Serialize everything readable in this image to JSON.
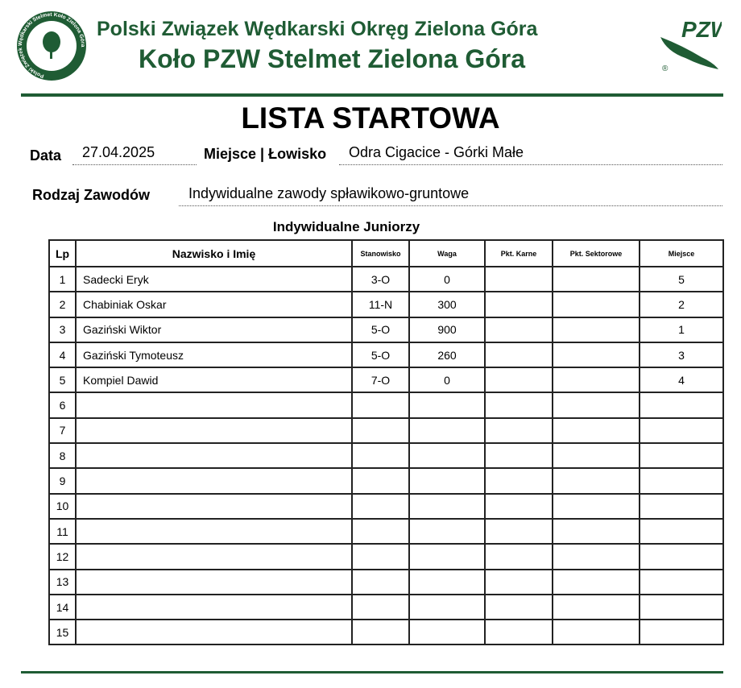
{
  "header": {
    "org": "Polski Związek Wędkarski Okręg Zielona Góra",
    "club": "Koło PZW Stelmet Zielona Góra",
    "left_logo_text": "Polski Związek Wędkarski Stelmet Koło Zielona Góra",
    "right_logo_text": "PZW ®"
  },
  "title": "LISTA STARTOWA",
  "fields": {
    "date_label": "Data",
    "date": "27.04.2025",
    "place_label": "Miejsce | Łowisko",
    "place": "Odra Cigacice - Górki Małe",
    "type_label": "Rodzaj Zawodów",
    "type": "Indywidualne zawody spławikowo-gruntowe"
  },
  "category": "Indywidualne Juniorzy",
  "colors": {
    "brand": "#1f5c34"
  },
  "table": {
    "headers": [
      "Lp",
      "Nazwisko i Imię",
      "Stanowisko",
      "Waga",
      "Pkt. Karne",
      "Pkt. Sektorowe",
      "Miejsce"
    ],
    "rows": [
      [
        "1",
        "Sadecki Eryk",
        "3-O",
        "0",
        "",
        "",
        "5"
      ],
      [
        "2",
        "Chabiniak Oskar",
        "11-N",
        "300",
        "",
        "",
        "2"
      ],
      [
        "3",
        "Gaziński Wiktor",
        "5-O",
        "900",
        "",
        "",
        "1"
      ],
      [
        "4",
        "Gaziński Tymoteusz",
        "5-O",
        "260",
        "",
        "",
        "3"
      ],
      [
        "5",
        "Kompiel Dawid",
        "7-O",
        "0",
        "",
        "",
        "4"
      ],
      [
        "6",
        "",
        "",
        "",
        "",
        "",
        ""
      ],
      [
        "7",
        "",
        "",
        "",
        "",
        "",
        ""
      ],
      [
        "8",
        "",
        "",
        "",
        "",
        "",
        ""
      ],
      [
        "9",
        "",
        "",
        "",
        "",
        "",
        ""
      ],
      [
        "10",
        "",
        "",
        "",
        "",
        "",
        ""
      ],
      [
        "11",
        "",
        "",
        "",
        "",
        "",
        ""
      ],
      [
        "12",
        "",
        "",
        "",
        "",
        "",
        ""
      ],
      [
        "13",
        "",
        "",
        "",
        "",
        "",
        ""
      ],
      [
        "14",
        "",
        "",
        "",
        "",
        "",
        ""
      ],
      [
        "15",
        "",
        "",
        "",
        "",
        "",
        ""
      ]
    ]
  }
}
